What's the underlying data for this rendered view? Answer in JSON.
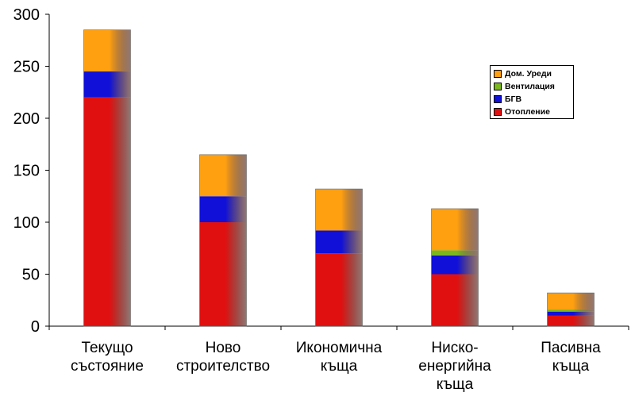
{
  "chart_data": {
    "type": "bar",
    "stacked": true,
    "categories": [
      [
        "Текущо",
        "състояние"
      ],
      [
        "Ново",
        "строителство"
      ],
      [
        "Икономична",
        "къща"
      ],
      [
        "Ниско-",
        "енергийна",
        "къща"
      ],
      [
        "Пасивна",
        "къща"
      ]
    ],
    "series": [
      {
        "name": "Отопление",
        "color": "#e01010",
        "values": [
          220,
          100,
          70,
          50,
          10
        ]
      },
      {
        "name": "БГВ",
        "color": "#1010d8",
        "values": [
          25,
          25,
          22,
          18,
          4
        ]
      },
      {
        "name": "Вентилация",
        "color": "#7ab81e",
        "values": [
          0,
          0,
          0,
          5,
          2
        ]
      },
      {
        "name": "Дом. Уреди",
        "color": "#ffa010",
        "values": [
          40,
          40,
          40,
          40,
          16
        ]
      }
    ],
    "ylim": [
      0,
      300
    ],
    "yticks": [
      "0",
      "50",
      "100",
      "150",
      "200",
      "250",
      "300"
    ],
    "grid": false,
    "legend_position": "right"
  },
  "legend": {
    "items": [
      {
        "label": "Дом. Уреди",
        "color": "#ffa010"
      },
      {
        "label": "Вентилация",
        "color": "#7ab81e"
      },
      {
        "label": "БГВ",
        "color": "#1010d8"
      },
      {
        "label": "Отопление",
        "color": "#e01010"
      }
    ]
  }
}
